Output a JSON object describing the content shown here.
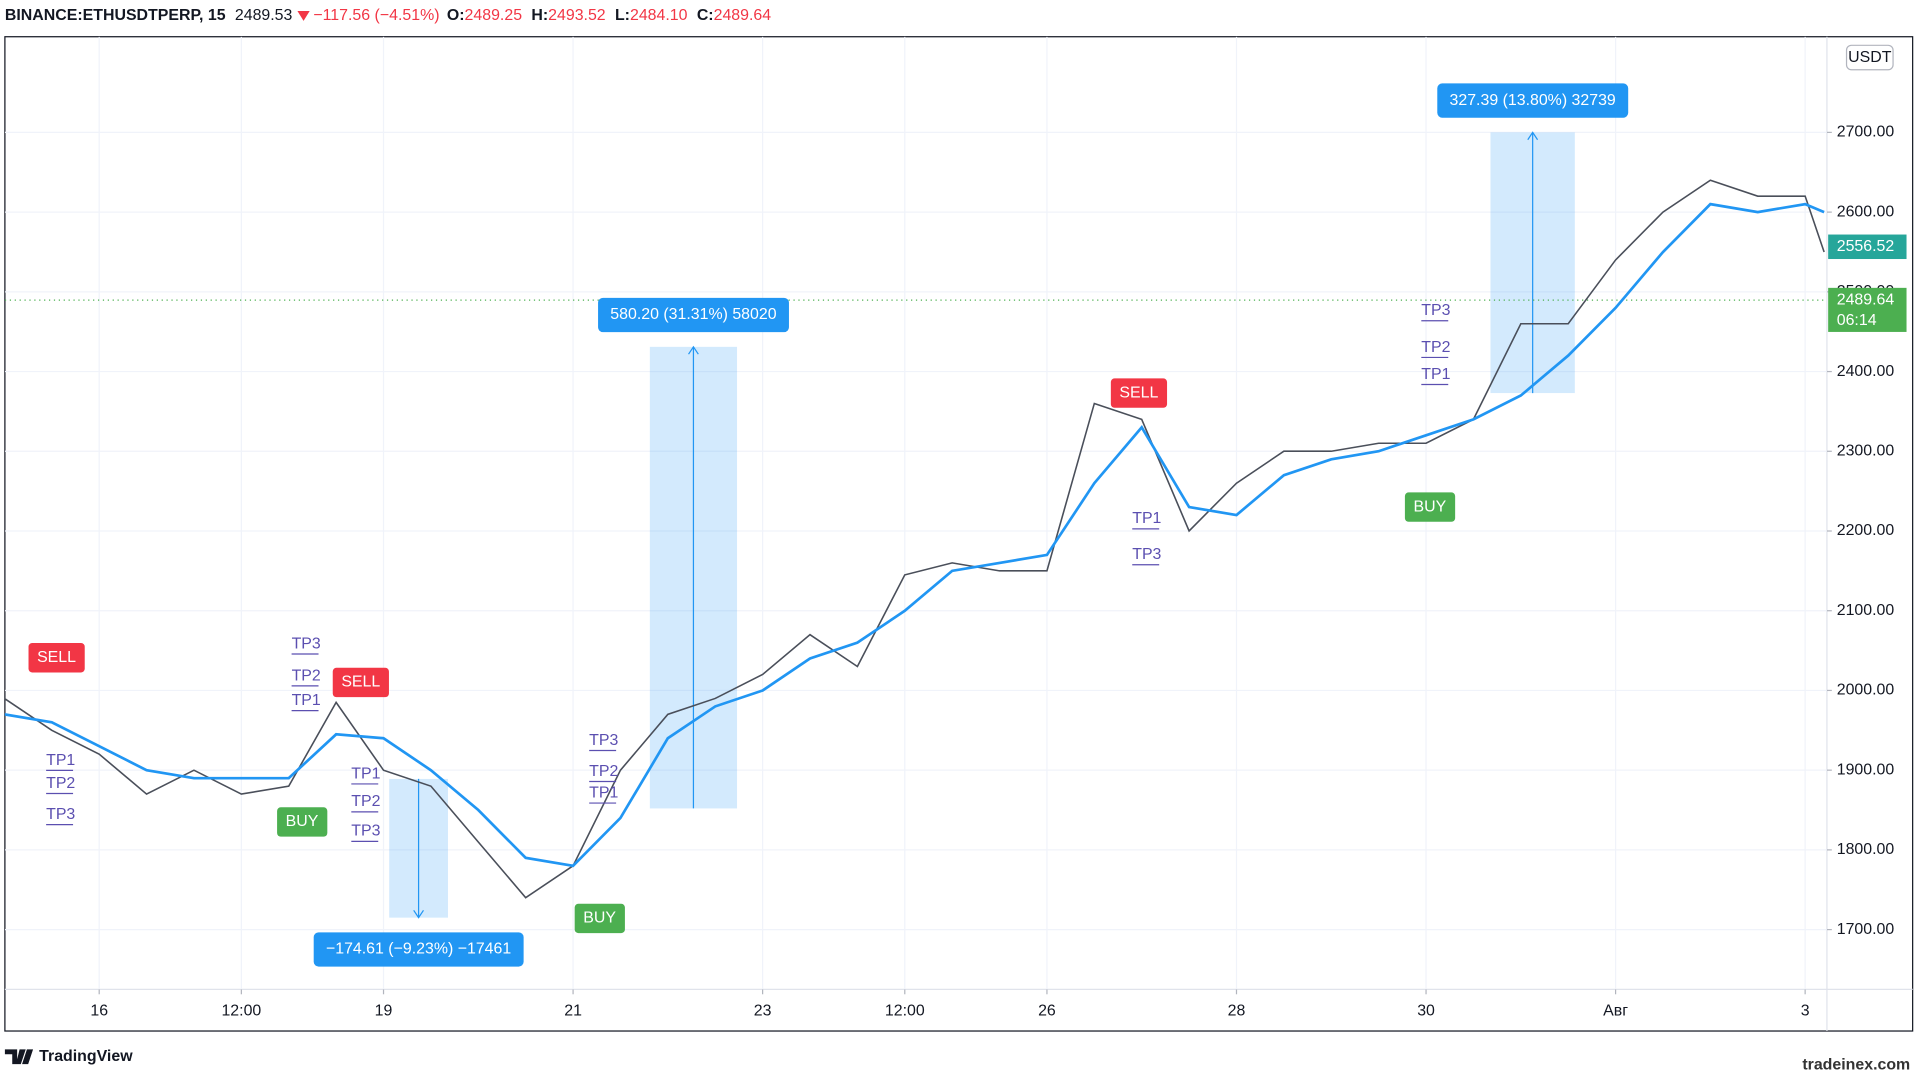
{
  "header": {
    "symbol": "BINANCE:ETHUSDTPERP, 15",
    "last": "2489.53",
    "change": "−117.56 (−4.51%)",
    "o_label": "O:",
    "o": "2489.25",
    "h_label": "H:",
    "h": "2493.52",
    "l_label": "L:",
    "l": "2484.10",
    "c_label": "C:",
    "c": "2489.64"
  },
  "chart_data": {
    "type": "line",
    "currency": "USDT",
    "x": [
      -1,
      -0.5,
      0,
      0.5,
      1,
      1.5,
      2,
      2.5,
      3,
      3.5,
      4,
      4.5,
      5,
      5.5,
      6,
      6.5,
      7,
      7.5,
      8,
      8.5,
      9,
      9.5,
      10,
      10.5,
      11,
      11.5,
      12,
      12.5,
      13,
      13.5,
      14,
      14.5,
      15,
      15.5,
      16,
      16.5,
      17,
      17.5,
      18,
      18.2
    ],
    "series": [
      {
        "color": "#4a4f5a",
        "values": [
          1990,
          1950,
          1920,
          1870,
          1900,
          1870,
          1880,
          1985,
          1900,
          1880,
          1810,
          1740,
          1780,
          1900,
          1970,
          1990,
          2020,
          2070,
          2030,
          2145,
          2160,
          2150,
          2150,
          2360,
          2340,
          2200,
          2260,
          2300,
          2300,
          2310,
          2310,
          2340,
          2460,
          2460,
          2540,
          2600,
          2640,
          2620,
          2620,
          2550
        ]
      },
      {
        "color": "#2196f3",
        "values": [
          1970,
          1960,
          1930,
          1900,
          1890,
          1890,
          1890,
          1945,
          1940,
          1900,
          1850,
          1790,
          1780,
          1840,
          1940,
          1980,
          2000,
          2040,
          2060,
          2100,
          2150,
          2160,
          2170,
          2260,
          2330,
          2230,
          2220,
          2270,
          2290,
          2300,
          2320,
          2340,
          2370,
          2420,
          2480,
          2550,
          2610,
          2600,
          2610,
          2600
        ]
      }
    ],
    "xlim": [
      -0.995,
      18.23
    ],
    "xticks": [
      {
        "value": 0,
        "label": "16"
      },
      {
        "value": 1.5,
        "label": "12:00"
      },
      {
        "value": 3,
        "label": "19"
      },
      {
        "value": 5,
        "label": "21"
      },
      {
        "value": 7,
        "label": "23"
      },
      {
        "value": 8.5,
        "label": "12:00"
      },
      {
        "value": 10,
        "label": "26"
      },
      {
        "value": 12,
        "label": "28"
      },
      {
        "value": 14,
        "label": "30"
      },
      {
        "value": 16,
        "label": "Авг"
      },
      {
        "value": 18,
        "label": "3"
      }
    ],
    "ylim": [
      1625,
      2820
    ],
    "yticks": [
      {
        "value": 1700,
        "label": "1700.00"
      },
      {
        "value": 1800,
        "label": "1800.00"
      },
      {
        "value": 1900,
        "label": "1900.00"
      },
      {
        "value": 2000,
        "label": "2000.00"
      },
      {
        "value": 2100,
        "label": "2100.00"
      },
      {
        "value": 2200,
        "label": "2200.00"
      },
      {
        "value": 2300,
        "label": "2300.00"
      },
      {
        "value": 2400,
        "label": "2400.00"
      },
      {
        "value": 2500,
        "label": "2500.00"
      },
      {
        "value": 2600,
        "label": "2600.00"
      },
      {
        "value": 2700,
        "label": "2700.00"
      }
    ],
    "grid": true,
    "signals": [
      {
        "label": "SELL",
        "x": -0.45,
        "y": 2041,
        "color": "#f23645"
      },
      {
        "label": "SELL",
        "x": 2.76,
        "y": 2010,
        "color": "#f23645"
      },
      {
        "label": "SELL",
        "x": 10.97,
        "y": 2373,
        "color": "#f23645"
      },
      {
        "label": "BUY",
        "x": 2.14,
        "y": 1835,
        "color": "#4caf50"
      },
      {
        "label": "BUY",
        "x": 5.28,
        "y": 1714,
        "color": "#4caf50"
      },
      {
        "label": "BUY",
        "x": 14.04,
        "y": 2230,
        "color": "#4caf50"
      }
    ],
    "targets": [
      {
        "label": "TP3",
        "x": 2.03,
        "y": 2058
      },
      {
        "label": "TP2",
        "x": 2.03,
        "y": 2018
      },
      {
        "label": "TP1",
        "x": 2.03,
        "y": 1987
      },
      {
        "label": "TP1",
        "x": -0.56,
        "y": 1912
      },
      {
        "label": "TP2",
        "x": -0.56,
        "y": 1883
      },
      {
        "label": "TP3",
        "x": -0.56,
        "y": 1844
      },
      {
        "label": "TP1",
        "x": 2.66,
        "y": 1895
      },
      {
        "label": "TP2",
        "x": 2.66,
        "y": 1860
      },
      {
        "label": "TP3",
        "x": 2.66,
        "y": 1823
      },
      {
        "label": "TP3",
        "x": 5.17,
        "y": 1937
      },
      {
        "label": "TP2",
        "x": 5.17,
        "y": 1898
      },
      {
        "label": "TP1",
        "x": 5.17,
        "y": 1871
      },
      {
        "label": "TP1",
        "x": 10.9,
        "y": 2215
      },
      {
        "label": "TP3",
        "x": 10.9,
        "y": 2170
      },
      {
        "label": "TP3",
        "x": 13.95,
        "y": 2476
      },
      {
        "label": "TP2",
        "x": 13.95,
        "y": 2430
      },
      {
        "label": "TP1",
        "x": 13.95,
        "y": 2396
      }
    ],
    "measures": [
      {
        "label": "−174.61 (−9.23%) −17461",
        "x0": 3.06,
        "x1": 3.68,
        "y0": 1889,
        "y1": 1715
      },
      {
        "label": "580.20 (31.31%) 58020",
        "x0": 5.81,
        "x1": 6.73,
        "y0": 1852,
        "y1": 2431
      },
      {
        "label": "327.39 (13.80%) 32739",
        "x0": 14.68,
        "x1": 15.57,
        "y0": 2373,
        "y1": 2700
      }
    ],
    "price_tags": [
      {
        "value": 2556.52,
        "color": "#26a69a"
      },
      {
        "value": 2489.64,
        "time": "06:14",
        "color": "#4caf50"
      }
    ]
  },
  "footer": {
    "brand": "TradingView",
    "watermark": "tradeinex.com"
  }
}
